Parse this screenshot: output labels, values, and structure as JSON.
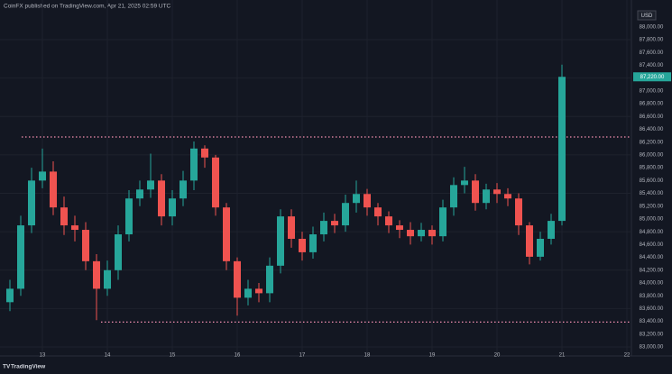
{
  "chart_data": {
    "type": "candlestick",
    "title": "CoinFX published on TradingView.com, Apr 21, 2025 02:59 UTC",
    "currency": "USD",
    "watermark": "TradingView",
    "up_color": "#26a69a",
    "down_color": "#ef5350",
    "level_color": "#f48fb1",
    "grid": true,
    "categories": [
      null,
      null,
      null,
      "13",
      null,
      null,
      null,
      null,
      null,
      "14",
      null,
      null,
      null,
      null,
      null,
      "15",
      null,
      null,
      null,
      null,
      null,
      "16",
      null,
      null,
      null,
      null,
      null,
      "17",
      null,
      null,
      null,
      null,
      null,
      "18",
      null,
      null,
      null,
      null,
      null,
      "19",
      null,
      null,
      null,
      null,
      null,
      "20",
      null,
      null,
      null,
      null,
      null,
      "21",
      null,
      null,
      null,
      null,
      null,
      "22"
    ],
    "series": {
      "open": [
        83700,
        83910,
        84900,
        85600,
        85740,
        85180,
        84900,
        84830,
        84340,
        83910,
        84200,
        84760,
        85320,
        85460,
        85600,
        85040,
        85320,
        85600,
        86100,
        85960,
        85180,
        84340,
        83770,
        83910,
        83840,
        84270,
        85040,
        84690,
        84480,
        84760,
        84970,
        84900,
        85250,
        85390,
        85180,
        85040,
        84900,
        84830,
        84730,
        84830,
        84730,
        85180,
        85530,
        85600,
        85250,
        85460,
        85390,
        85320,
        84900,
        84410,
        84690,
        84970,
        null,
        null,
        null,
        null,
        null,
        null
      ],
      "high": [
        84050,
        85050,
        85800,
        86100,
        85900,
        85350,
        85050,
        84950,
        84450,
        84350,
        84900,
        85450,
        85600,
        86020,
        85700,
        85450,
        85750,
        86210,
        86150,
        86000,
        85250,
        84400,
        84050,
        84000,
        84400,
        85150,
        85150,
        84800,
        84880,
        85100,
        85080,
        85380,
        85600,
        85470,
        85250,
        85120,
        84980,
        84950,
        84940,
        84900,
        85300,
        85650,
        85815,
        85700,
        85550,
        85560,
        85480,
        85400,
        84950,
        84800,
        85080,
        87410,
        null,
        null,
        null,
        null,
        null,
        null
      ],
      "low": [
        83560,
        83800,
        84780,
        85480,
        85060,
        84750,
        84650,
        84200,
        83420,
        83800,
        84050,
        84650,
        85200,
        85330,
        84900,
        84900,
        85200,
        85450,
        85800,
        85050,
        84200,
        83490,
        83650,
        83700,
        83700,
        84150,
        84550,
        84350,
        84380,
        84650,
        84780,
        84800,
        85100,
        85050,
        84900,
        84780,
        84700,
        84600,
        84650,
        84600,
        84650,
        85050,
        85400,
        85130,
        85150,
        85250,
        85200,
        84750,
        84290,
        84350,
        84600,
        84900,
        null,
        null,
        null,
        null,
        null,
        null
      ],
      "close": [
        83910,
        84900,
        85600,
        85740,
        85180,
        84900,
        84830,
        84340,
        83910,
        84200,
        84760,
        85320,
        85460,
        85600,
        85040,
        85320,
        85600,
        86100,
        85960,
        85180,
        84340,
        83770,
        83910,
        83840,
        84270,
        85040,
        84690,
        84480,
        84760,
        84970,
        84900,
        85250,
        85390,
        85180,
        85040,
        84900,
        84830,
        84730,
        84830,
        84730,
        85180,
        85530,
        85600,
        85250,
        85460,
        85390,
        85320,
        84900,
        84410,
        84690,
        84970,
        87220,
        null,
        null,
        null,
        null,
        null,
        null
      ]
    },
    "last_price_label": "87,220.00",
    "levels": [
      86280,
      83390
    ],
    "ylim": [
      82860,
      88420
    ],
    "yticks": [
      {
        "value": 83000,
        "label": "83,000.00"
      },
      {
        "value": 83200,
        "label": "83,200.00"
      },
      {
        "value": 83400,
        "label": "83,400.00"
      },
      {
        "value": 83600,
        "label": "83,600.00"
      },
      {
        "value": 83800,
        "label": "83,800.00"
      },
      {
        "value": 84000,
        "label": "84,000.00"
      },
      {
        "value": 84200,
        "label": "84,200.00"
      },
      {
        "value": 84400,
        "label": "84,400.00"
      },
      {
        "value": 84600,
        "label": "84,600.00"
      },
      {
        "value": 84800,
        "label": "84,800.00"
      },
      {
        "value": 85000,
        "label": "85,000.00"
      },
      {
        "value": 85200,
        "label": "85,200.00"
      },
      {
        "value": 85400,
        "label": "85,400.00"
      },
      {
        "value": 85600,
        "label": "85,600.00"
      },
      {
        "value": 85800,
        "label": "85,800.00"
      },
      {
        "value": 86000,
        "label": "86,000.00"
      },
      {
        "value": 86200,
        "label": "86,200.00"
      },
      {
        "value": 86400,
        "label": "86,400.00"
      },
      {
        "value": 86600,
        "label": "86,600.00"
      },
      {
        "value": 86800,
        "label": "86,800.00"
      },
      {
        "value": 87000,
        "label": "87,000.00"
      },
      {
        "value": 87200,
        "label": "87,200.00"
      },
      {
        "value": 87400,
        "label": "87,400.00"
      },
      {
        "value": 87600,
        "label": "87,600.00"
      },
      {
        "value": 87800,
        "label": "87,800.00"
      },
      {
        "value": 88000,
        "label": "88,000.00"
      }
    ]
  }
}
